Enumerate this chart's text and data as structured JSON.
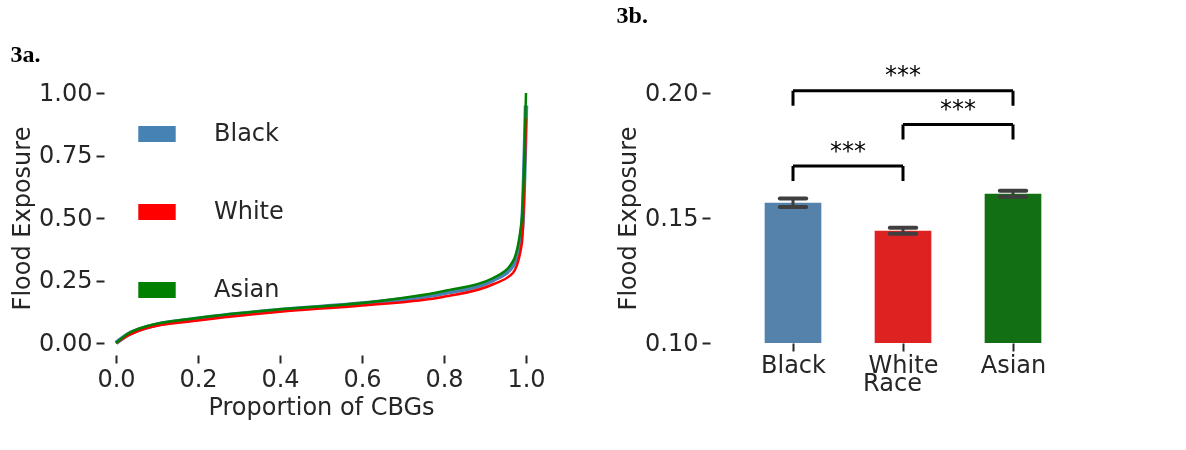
{
  "chart_data": [
    {
      "type": "line",
      "title": "3a.",
      "xlabel": "Proportion of CBGs",
      "ylabel": "Flood Exposure",
      "xlim": [
        0,
        1
      ],
      "ylim": [
        0,
        1
      ],
      "xticks": [
        {
          "value": 0,
          "label": "0.0"
        },
        0.2,
        0.4,
        0.6,
        0.8,
        {
          "value": 1,
          "label": "1.0"
        }
      ],
      "yticks": [
        {
          "value": 0,
          "label": "0.00"
        },
        {
          "value": 0.25,
          "label": "0.25"
        },
        {
          "value": 0.5,
          "label": "0.50"
        },
        {
          "value": 0.75,
          "label": "0.75"
        },
        {
          "value": 1,
          "label": "1.00"
        }
      ],
      "legend": "top left",
      "grid": false,
      "x": [
        0.0,
        0.03,
        0.075,
        0.2,
        0.4,
        0.6,
        0.8,
        0.92,
        0.968,
        0.99,
        1.0
      ],
      "series": [
        {
          "name": "Black",
          "color": "#4682b4",
          "values": [
            0.0,
            0.035,
            0.063,
            0.097,
            0.132,
            0.158,
            0.2,
            0.252,
            0.31,
            0.45,
            0.95
          ]
        },
        {
          "name": "White",
          "color": "#ff0000",
          "values": [
            0.0,
            0.03,
            0.06,
            0.09,
            0.125,
            0.15,
            0.185,
            0.235,
            0.28,
            0.4,
            0.9
          ]
        },
        {
          "name": "Asian",
          "color": "#008000",
          "values": [
            0.0,
            0.038,
            0.067,
            0.1,
            0.135,
            0.16,
            0.208,
            0.26,
            0.326,
            0.5,
            1.0
          ]
        }
      ]
    },
    {
      "type": "bar",
      "title": "3b.",
      "xlabel": "Race",
      "ylabel": "Flood Exposure",
      "categories": [
        "Black",
        "White",
        "Asian"
      ],
      "values": [
        0.1561,
        0.1449,
        0.1597
      ],
      "errors": [
        0.0017,
        0.0012,
        0.0012
      ],
      "colors": [
        "#5582aa",
        "#de2121",
        "#136f13"
      ],
      "ylim": [
        0.1,
        0.2
      ],
      "yticks": [
        {
          "value": 0.1,
          "label": "0.10"
        },
        {
          "value": 0.15,
          "label": "0.15"
        },
        {
          "value": 0.2,
          "label": "0.20"
        }
      ],
      "grid": false,
      "annotations": [
        "***",
        "***",
        "***"
      ]
    }
  ]
}
